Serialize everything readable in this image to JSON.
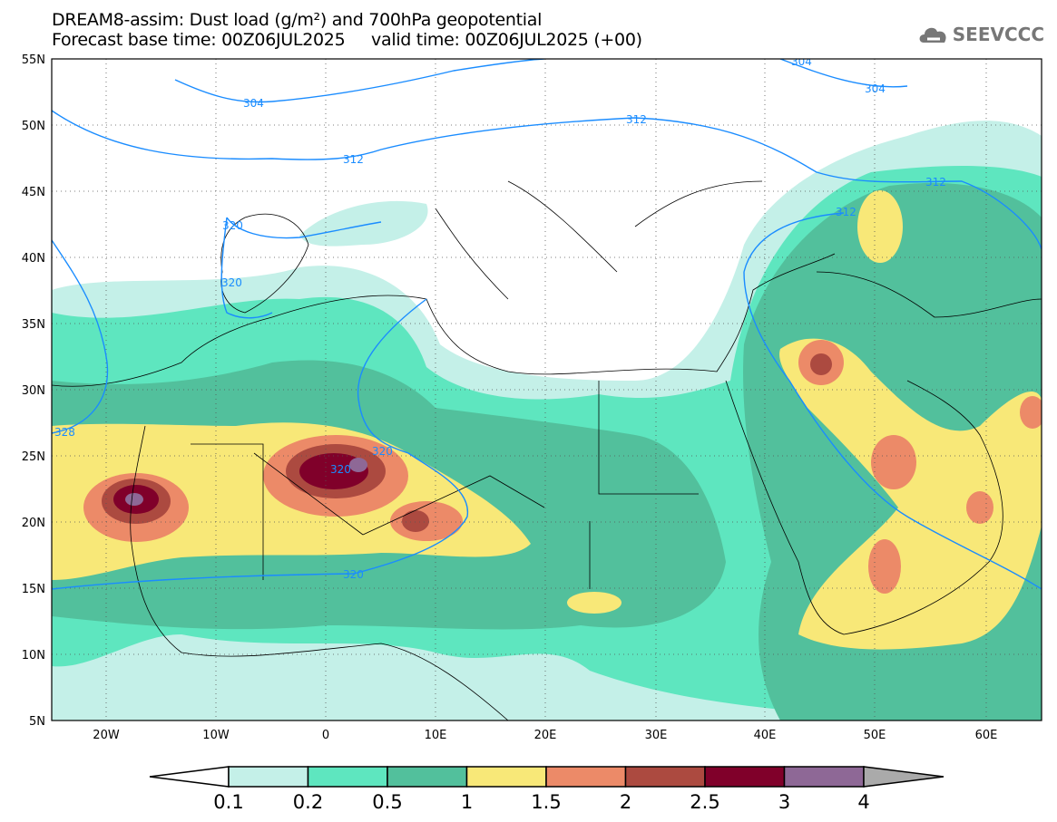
{
  "title": {
    "line1": "DREAM8-assim: Dust load (g/m²) and 700hPa geopotential",
    "line2": "Forecast base time: 00Z06JUL2025     valid time: 00Z06JUL2025 (+00)"
  },
  "logo": {
    "text": "SEEVCCC"
  },
  "axes": {
    "lat_labels": [
      "55N",
      "50N",
      "45N",
      "40N",
      "35N",
      "30N",
      "25N",
      "20N",
      "15N",
      "10N",
      "5N"
    ],
    "lon_labels": [
      "20W",
      "10W",
      "0",
      "10E",
      "20E",
      "30E",
      "40E",
      "50E",
      "60E"
    ]
  },
  "contours": {
    "labels": [
      "304",
      "304",
      "304",
      "312",
      "312",
      "312",
      "312",
      "320",
      "320",
      "320",
      "320",
      "320",
      "328"
    ]
  },
  "colorbar": {
    "ticks": [
      "0.1",
      "0.2",
      "0.5",
      "1",
      "1.5",
      "2",
      "2.5",
      "3",
      "4"
    ],
    "colors": [
      "#c4f0e8",
      "#5ee6bf",
      "#52c09c",
      "#f8e878",
      "#ec8a68",
      "#ac4a40",
      "#80002a",
      "#8e6896",
      "#aaaaaa"
    ]
  }
}
